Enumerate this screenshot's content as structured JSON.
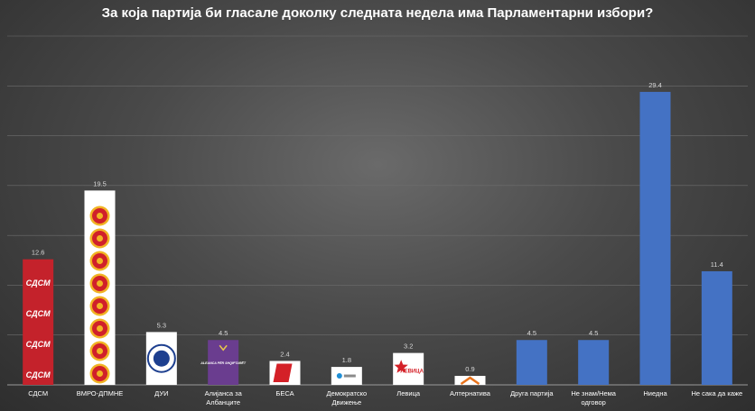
{
  "chart_data": {
    "type": "bar",
    "title": "За која партија би гласале доколку следната недела има Парламентарни избори?",
    "categories": [
      [
        "СДСМ"
      ],
      [
        "ВМРО-ДПМНЕ"
      ],
      [
        "ДУИ"
      ],
      [
        "Алијанса за",
        "Албанците"
      ],
      [
        "БЕСА"
      ],
      [
        "Демократско",
        "Движење"
      ],
      [
        "Левица"
      ],
      [
        "Алтернатива"
      ],
      [
        "Друга партија"
      ],
      [
        "Не знам/Нема",
        "одговор"
      ],
      [
        "Ниедна"
      ],
      [
        "Не сака да каже"
      ]
    ],
    "values": [
      12.6,
      19.5,
      5.3,
      4.5,
      2.4,
      1.8,
      3.2,
      0.9,
      4.5,
      4.5,
      29.4,
      11.4
    ],
    "value_labels": [
      "12.6",
      "19.5",
      "5.3",
      "4.5",
      "2.4",
      "1.8",
      "3.2",
      "0.9",
      "4.5",
      "4.5",
      "29.4",
      "11.4"
    ],
    "bar_styles": [
      "sdsm",
      "vmro",
      "dui",
      "alliance",
      "besa",
      "dd",
      "levica",
      "alternativa",
      "blue",
      "blue",
      "blue",
      "blue"
    ],
    "logo_text": {
      "sdsm": "СДСМ",
      "alliance": "ALEANCA PËR SHQIPTARËT",
      "levica": "ЛЕВИЦА"
    },
    "ylim": [
      0,
      35
    ],
    "grid": true,
    "legend": "none",
    "colors": {
      "sdsm": "#c4222b",
      "blue": "#4472c4",
      "alliance": "#6a3d8f",
      "besa": "#d42027",
      "levica": "#d42027",
      "alternativa": "#e8731c",
      "dd": "#1f8fd6",
      "dui": "#1d3f8f",
      "vmro_red": "#d0202a",
      "vmro_gold": "#f1b424"
    }
  }
}
